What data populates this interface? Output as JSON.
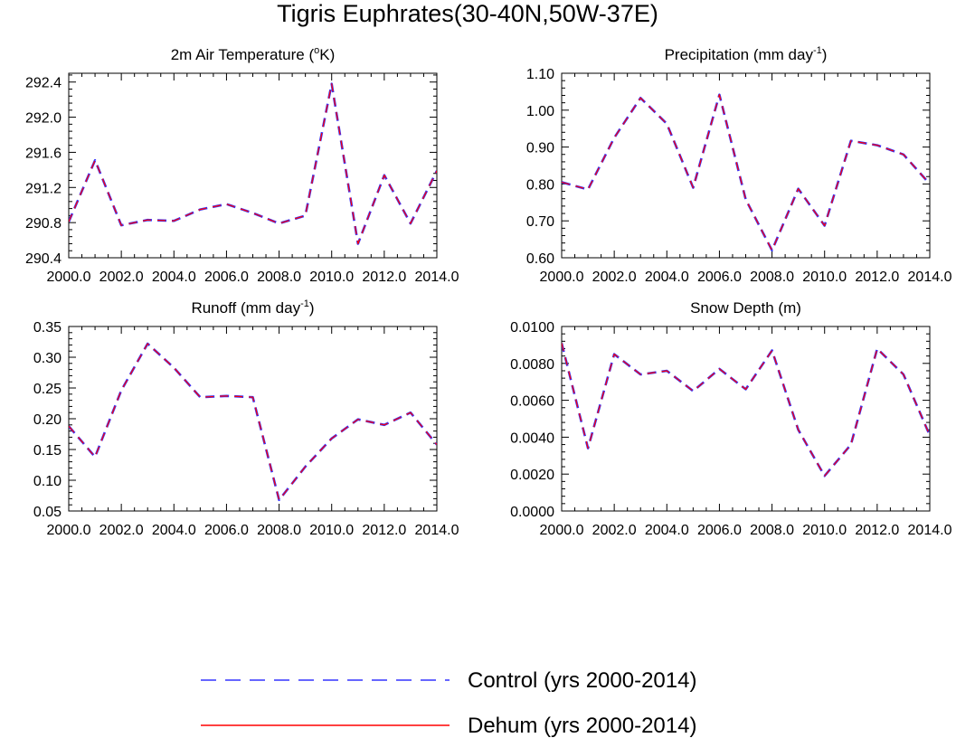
{
  "figure_title": "Tigris Euphrates(30-40N,50W-37E)",
  "legend": [
    {
      "name": "Control (yrs 2000-2014)",
      "color": "#3333ff",
      "style": "dashed"
    },
    {
      "name": "Dehum (yrs 2000-2014)",
      "color": "#ff0000",
      "style": "solid"
    }
  ],
  "chart_data": [
    {
      "type": "line",
      "title_main": "2m Air Temperature (",
      "title_sup": "o",
      "title_tail": "K)",
      "x": [
        2000,
        2001,
        2002,
        2003,
        2004,
        2005,
        2006,
        2007,
        2008,
        2009,
        2010,
        2011,
        2012,
        2013,
        2014
      ],
      "xlim": [
        2000,
        2014
      ],
      "xticks": [
        "2000.0",
        "2002.0",
        "2004.0",
        "2006.0",
        "2008.0",
        "2010.0",
        "2012.0",
        "2014.0"
      ],
      "ylim": [
        290.4,
        292.5
      ],
      "yticks": [
        {
          "v": 290.4,
          "t": "290.4"
        },
        {
          "v": 290.8,
          "t": "290.8"
        },
        {
          "v": 291.2,
          "t": "291.2"
        },
        {
          "v": 291.6,
          "t": "291.6"
        },
        {
          "v": 292.0,
          "t": "292.0"
        },
        {
          "v": 292.4,
          "t": "292.4"
        }
      ],
      "series": [
        {
          "name": "Control (yrs 2000-2014)",
          "values": [
            290.81,
            291.51,
            290.77,
            290.83,
            290.82,
            290.95,
            291.01,
            290.91,
            290.79,
            290.88,
            292.38,
            290.56,
            291.34,
            290.79,
            291.39
          ]
        },
        {
          "name": "Dehum (yrs 2000-2014)",
          "values": [
            290.81,
            291.51,
            290.77,
            290.83,
            290.82,
            290.95,
            291.01,
            290.91,
            290.79,
            290.88,
            292.38,
            290.56,
            291.34,
            290.79,
            291.39
          ]
        }
      ]
    },
    {
      "type": "line",
      "title_main": "Precipitation (mm day",
      "title_sup": "-1",
      "title_tail": ")",
      "x": [
        2000,
        2001,
        2002,
        2003,
        2004,
        2005,
        2006,
        2007,
        2008,
        2009,
        2010,
        2011,
        2012,
        2013,
        2014
      ],
      "xlim": [
        2000,
        2014
      ],
      "xticks": [
        "2000.0",
        "2002.0",
        "2004.0",
        "2006.0",
        "2008.0",
        "2010.0",
        "2012.0",
        "2014.0"
      ],
      "ylim": [
        0.6,
        1.1
      ],
      "yticks": [
        {
          "v": 0.6,
          "t": "0.60"
        },
        {
          "v": 0.7,
          "t": "0.70"
        },
        {
          "v": 0.8,
          "t": "0.80"
        },
        {
          "v": 0.9,
          "t": "0.90"
        },
        {
          "v": 1.0,
          "t": "1.00"
        },
        {
          "v": 1.1,
          "t": "1.10"
        }
      ],
      "series": [
        {
          "name": "Control (yrs 2000-2014)",
          "values": [
            0.805,
            0.785,
            0.925,
            1.033,
            0.963,
            0.79,
            1.042,
            0.758,
            0.62,
            0.787,
            0.687,
            0.917,
            0.905,
            0.88,
            0.8
          ]
        },
        {
          "name": "Dehum (yrs 2000-2014)",
          "values": [
            0.805,
            0.785,
            0.925,
            1.033,
            0.963,
            0.79,
            1.042,
            0.758,
            0.62,
            0.787,
            0.687,
            0.917,
            0.905,
            0.88,
            0.8
          ]
        }
      ]
    },
    {
      "type": "line",
      "title_main": "Runoff (mm day",
      "title_sup": "-1",
      "title_tail": ")",
      "x": [
        2000,
        2001,
        2002,
        2003,
        2004,
        2005,
        2006,
        2007,
        2008,
        2009,
        2010,
        2011,
        2012,
        2013,
        2014
      ],
      "xlim": [
        2000,
        2014
      ],
      "xticks": [
        "2000.0",
        "2002.0",
        "2004.0",
        "2006.0",
        "2008.0",
        "2010.0",
        "2012.0",
        "2014.0"
      ],
      "ylim": [
        0.05,
        0.35
      ],
      "yticks": [
        {
          "v": 0.05,
          "t": "0.05"
        },
        {
          "v": 0.1,
          "t": "0.10"
        },
        {
          "v": 0.15,
          "t": "0.15"
        },
        {
          "v": 0.2,
          "t": "0.20"
        },
        {
          "v": 0.25,
          "t": "0.25"
        },
        {
          "v": 0.3,
          "t": "0.30"
        },
        {
          "v": 0.35,
          "t": "0.35"
        }
      ],
      "series": [
        {
          "name": "Control (yrs 2000-2014)",
          "values": [
            0.188,
            0.138,
            0.246,
            0.322,
            0.283,
            0.235,
            0.237,
            0.235,
            0.068,
            0.122,
            0.168,
            0.199,
            0.19,
            0.21,
            0.158
          ]
        },
        {
          "name": "Dehum (yrs 2000-2014)",
          "values": [
            0.188,
            0.138,
            0.246,
            0.322,
            0.283,
            0.235,
            0.237,
            0.235,
            0.068,
            0.122,
            0.168,
            0.199,
            0.19,
            0.21,
            0.158
          ]
        }
      ]
    },
    {
      "type": "line",
      "title_main": "Snow Depth (m)",
      "title_sup": "",
      "title_tail": "",
      "x": [
        2000,
        2001,
        2002,
        2003,
        2004,
        2005,
        2006,
        2007,
        2008,
        2009,
        2010,
        2011,
        2012,
        2013,
        2014
      ],
      "xlim": [
        2000,
        2014
      ],
      "xticks": [
        "2000.0",
        "2002.0",
        "2004.0",
        "2006.0",
        "2008.0",
        "2010.0",
        "2012.0",
        "2014.0"
      ],
      "ylim": [
        0.0,
        0.01
      ],
      "yticks": [
        {
          "v": 0.0,
          "t": "0.0000"
        },
        {
          "v": 0.002,
          "t": "0.0020"
        },
        {
          "v": 0.004,
          "t": "0.0040"
        },
        {
          "v": 0.006,
          "t": "0.0060"
        },
        {
          "v": 0.008,
          "t": "0.0080"
        },
        {
          "v": 0.01,
          "t": "0.0100"
        }
      ],
      "series": [
        {
          "name": "Control (yrs 2000-2014)",
          "values": [
            0.0091,
            0.0034,
            0.0085,
            0.0074,
            0.0076,
            0.0065,
            0.0077,
            0.0066,
            0.0087,
            0.0044,
            0.0019,
            0.0036,
            0.0088,
            0.0074,
            0.0041
          ]
        },
        {
          "name": "Dehum (yrs 2000-2014)",
          "values": [
            0.0091,
            0.0034,
            0.0085,
            0.0074,
            0.0076,
            0.0065,
            0.0077,
            0.0066,
            0.0087,
            0.0044,
            0.0019,
            0.0036,
            0.0088,
            0.0074,
            0.0041
          ]
        }
      ]
    }
  ]
}
